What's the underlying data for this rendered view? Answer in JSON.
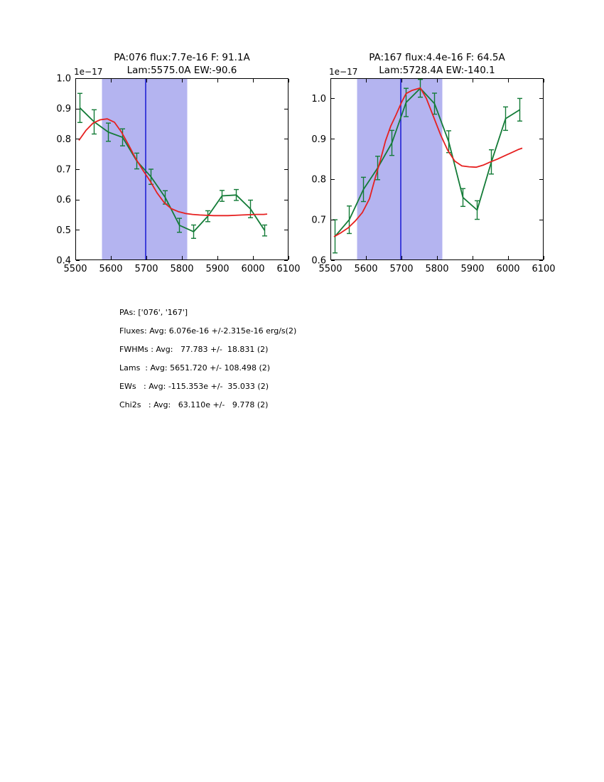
{
  "colors": {
    "data_line": "#137b37",
    "model_line": "#e62020",
    "band_fill": "#b4b4f0",
    "vline": "#0d0dd0",
    "axis": "#000000",
    "background": "#ffffff"
  },
  "chart_data": [
    {
      "type": "line",
      "title": "PA:076 flux:7.7e-16 F: 91.1A",
      "subtitle": "Lam:5575.0A EW:-90.6",
      "y_offset_label": "1e−17",
      "xlim": [
        5500,
        6100
      ],
      "ylim": [
        0.4,
        1.0
      ],
      "xticks": [
        5500,
        5600,
        5700,
        5800,
        5900,
        6000,
        6100
      ],
      "yticks": [
        0.4,
        0.5,
        0.6,
        0.7,
        0.8,
        0.9,
        1.0
      ],
      "band": [
        5575,
        5815
      ],
      "vline": 5698,
      "grid": false,
      "legend": null,
      "series": [
        {
          "name": "observed-spectrum",
          "style": "data_line",
          "x": [
            5513,
            5553,
            5593,
            5633,
            5673,
            5713,
            5753,
            5793,
            5833,
            5873,
            5913,
            5953,
            5993,
            6033
          ],
          "y": [
            0.902,
            0.856,
            0.822,
            0.805,
            0.727,
            0.675,
            0.607,
            0.515,
            0.494,
            0.545,
            0.612,
            0.615,
            0.569,
            0.498
          ],
          "yerr": [
            0.048,
            0.04,
            0.03,
            0.028,
            0.026,
            0.025,
            0.022,
            0.023,
            0.022,
            0.018,
            0.018,
            0.018,
            0.029,
            0.018
          ]
        },
        {
          "name": "model-fit",
          "style": "model_line",
          "x": [
            5510,
            5530,
            5550,
            5570,
            5590,
            5610,
            5630,
            5650,
            5670,
            5690,
            5710,
            5730,
            5750,
            5770,
            5790,
            5810,
            5830,
            5850,
            5870,
            5890,
            5910,
            5930,
            5950,
            5970,
            5990,
            6010,
            6030,
            6040
          ],
          "y": [
            0.795,
            0.828,
            0.852,
            0.863,
            0.866,
            0.855,
            0.822,
            0.78,
            0.735,
            0.697,
            0.662,
            0.622,
            0.59,
            0.57,
            0.56,
            0.554,
            0.551,
            0.549,
            0.548,
            0.547,
            0.547,
            0.547,
            0.548,
            0.549,
            0.55,
            0.551,
            0.551,
            0.552
          ]
        }
      ]
    },
    {
      "type": "line",
      "title": "PA:167 flux:4.4e-16 F: 64.5A",
      "subtitle": "Lam:5728.4A EW:-140.1",
      "y_offset_label": "1e−17",
      "xlim": [
        5500,
        6100
      ],
      "ylim": [
        0.6,
        1.05
      ],
      "xticks": [
        5500,
        5600,
        5700,
        5800,
        5900,
        6000,
        6100
      ],
      "yticks": [
        0.6,
        0.7,
        0.8,
        0.9,
        1.0
      ],
      "band": [
        5575,
        5815
      ],
      "vline": 5698,
      "grid": false,
      "legend": null,
      "series": [
        {
          "name": "observed-spectrum",
          "style": "data_line",
          "x": [
            5513,
            5553,
            5593,
            5633,
            5673,
            5713,
            5753,
            5793,
            5833,
            5873,
            5913,
            5953,
            5993,
            6033
          ],
          "y": [
            0.659,
            0.7,
            0.775,
            0.828,
            0.89,
            0.99,
            1.025,
            0.987,
            0.893,
            0.755,
            0.724,
            0.843,
            0.95,
            0.972
          ],
          "yerr": [
            0.041,
            0.034,
            0.03,
            0.029,
            0.031,
            0.035,
            0.022,
            0.026,
            0.027,
            0.022,
            0.023,
            0.03,
            0.029,
            0.028
          ]
        },
        {
          "name": "model-fit",
          "style": "model_line",
          "x": [
            5510,
            5530,
            5550,
            5570,
            5590,
            5610,
            5625,
            5640,
            5655,
            5670,
            5685,
            5700,
            5713,
            5730,
            5753,
            5770,
            5790,
            5810,
            5830,
            5850,
            5870,
            5890,
            5910,
            5930,
            5950,
            5970,
            5990,
            6010,
            6030,
            6040
          ],
          "y": [
            0.658,
            0.668,
            0.68,
            0.697,
            0.718,
            0.752,
            0.8,
            0.845,
            0.895,
            0.932,
            0.96,
            0.99,
            1.012,
            1.02,
            1.026,
            1.0,
            0.955,
            0.91,
            0.872,
            0.845,
            0.833,
            0.831,
            0.83,
            0.835,
            0.843,
            0.85,
            0.858,
            0.866,
            0.874,
            0.877
          ]
        }
      ]
    }
  ],
  "stats": {
    "lines": [
      "PAs: ['076', '167']",
      "Fluxes: Avg: 6.076e-16 +/-2.315e-16 erg/s(2)",
      "FWHMs : Avg:   77.783 +/-  18.831 (2)",
      "Lams  : Avg: 5651.720 +/- 108.498 (2)",
      "EWs   : Avg: -115.353e +/-  35.033 (2)",
      "Chi2s   : Avg:   63.110e +/-   9.778 (2)"
    ]
  }
}
